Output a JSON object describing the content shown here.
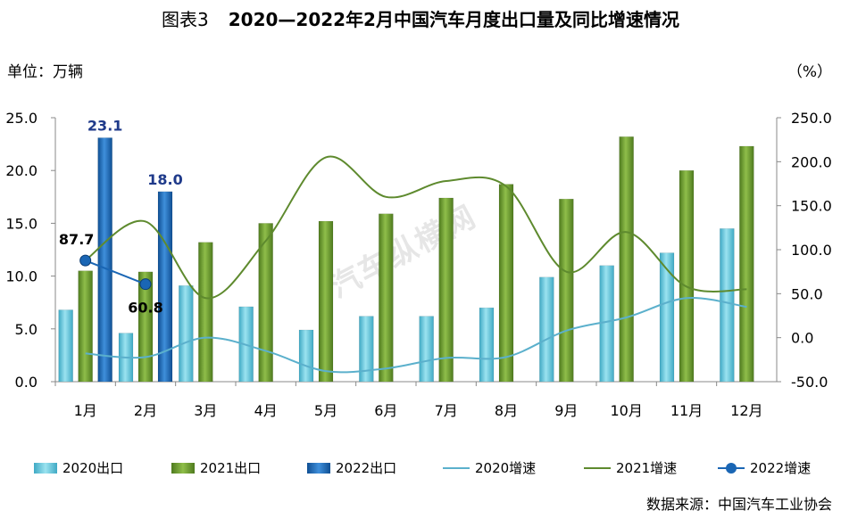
{
  "title": {
    "prefix": "图表3",
    "main": "2020—2022年2月中国汽车月度出口量及同比增速情况"
  },
  "unit_left": "单位：万辆",
  "unit_right": "（%）",
  "source": "数据来源：中国汽车工业协会",
  "watermark": "汽车纵横网",
  "colors": {
    "s2020": "#5FC6DA",
    "s2021": "#6F9A2E",
    "s2022": "#1A66B4",
    "g2020": "#5BB0CC",
    "g2021": "#5E8A2E",
    "g2022": "#1A66B4"
  },
  "chart_data": {
    "type": "bar",
    "categories": [
      "1月",
      "2月",
      "3月",
      "4月",
      "5月",
      "6月",
      "7月",
      "8月",
      "9月",
      "10月",
      "11月",
      "12月"
    ],
    "ylim": [
      0,
      25
    ],
    "y_ticks": [
      "0.0",
      "5.0",
      "10.0",
      "15.0",
      "20.0",
      "25.0"
    ],
    "y2lim": [
      -50,
      250
    ],
    "y2_ticks": [
      "-50.0",
      "0.0",
      "50.0",
      "100.0",
      "150.0",
      "200.0",
      "250.0"
    ],
    "series": [
      {
        "name": "2020出口",
        "kind": "bar",
        "axis": "left",
        "values": [
          6.8,
          4.6,
          9.1,
          7.1,
          4.9,
          6.2,
          6.2,
          7.0,
          9.9,
          11.0,
          12.2,
          14.5
        ]
      },
      {
        "name": "2021出口",
        "kind": "bar",
        "axis": "left",
        "values": [
          10.5,
          10.4,
          13.2,
          15.0,
          15.2,
          15.9,
          17.4,
          18.7,
          17.3,
          23.2,
          20.0,
          22.3
        ]
      },
      {
        "name": "2022出口",
        "kind": "bar",
        "axis": "left",
        "values": [
          23.1,
          18.0,
          null,
          null,
          null,
          null,
          null,
          null,
          null,
          null,
          null,
          null
        ],
        "data_labels": [
          "23.1",
          "18.0"
        ]
      },
      {
        "name": "2020增速",
        "kind": "line",
        "axis": "right",
        "values": [
          -18,
          -22,
          0,
          -15,
          -38,
          -35,
          -23,
          -22,
          8,
          23,
          45,
          35
        ]
      },
      {
        "name": "2021增速",
        "kind": "line",
        "axis": "right",
        "values": [
          88,
          132,
          45,
          110,
          205,
          160,
          178,
          172,
          75,
          120,
          58,
          55
        ]
      },
      {
        "name": "2022增速",
        "kind": "line_marker",
        "axis": "right",
        "values": [
          87.7,
          60.8,
          null,
          null,
          null,
          null,
          null,
          null,
          null,
          null,
          null,
          null
        ],
        "data_labels": [
          "87.7",
          "60.8"
        ]
      }
    ]
  }
}
